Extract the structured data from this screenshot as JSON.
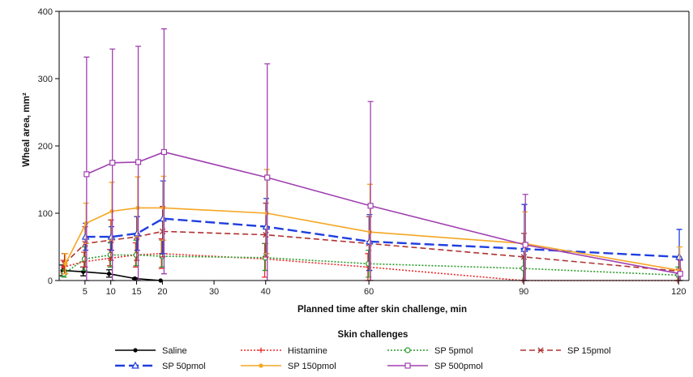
{
  "chart_data": {
    "type": "line",
    "title": "",
    "xlabel": "Planned time after skin challenge, min",
    "ylabel": "Wheal area, mm²",
    "xlim": [
      0,
      122
    ],
    "ylim": [
      0,
      400
    ],
    "x_ticks": [
      5,
      10,
      15,
      20,
      30,
      40,
      60,
      90,
      120
    ],
    "x_tick_labels": [
      "5",
      "10",
      "15",
      "20",
      "30",
      "40",
      "60",
      "90",
      "120"
    ],
    "y_ticks": [
      0,
      100,
      200,
      300,
      400
    ],
    "y_tick_labels": [
      "0",
      "100",
      "200",
      "300",
      "400"
    ],
    "grid": false,
    "legend": {
      "title": "Skin challenges",
      "placement": "bottom"
    },
    "series": [
      {
        "name": "Saline",
        "color": "#000000",
        "dash": "solid",
        "marker": "dot",
        "x": [
          1,
          5,
          10,
          15,
          20
        ],
        "y": [
          15,
          13,
          10,
          3,
          0
        ],
        "err_low": [
          7,
          7,
          5,
          2,
          0
        ],
        "err_high": [
          23,
          20,
          16,
          4,
          0
        ]
      },
      {
        "name": "Histamine",
        "color": "#ee2a2a",
        "dash": "dot",
        "marker": "plus",
        "x": [
          1,
          5,
          10,
          15,
          20,
          40,
          60,
          90,
          120
        ],
        "y": [
          20,
          28,
          33,
          38,
          40,
          32,
          20,
          0,
          0
        ],
        "err_low": [
          12,
          20,
          22,
          20,
          18,
          5,
          0,
          0,
          0
        ],
        "err_high": [
          30,
          42,
          46,
          56,
          62,
          55,
          40,
          0,
          0
        ]
      },
      {
        "name": "SP 5pmol",
        "color": "#2a9a2a",
        "dash": "dot",
        "marker": "circle",
        "x": [
          1,
          5,
          10,
          15,
          20,
          40,
          60,
          90,
          120
        ],
        "y": [
          10,
          32,
          38,
          38,
          36,
          34,
          25,
          18,
          8
        ],
        "err_low": [
          5,
          15,
          20,
          22,
          20,
          15,
          5,
          0,
          0
        ],
        "err_high": [
          16,
          50,
          56,
          60,
          60,
          55,
          45,
          35,
          20
        ]
      },
      {
        "name": "SP 15pmol",
        "color": "#b03030",
        "dash": "dash",
        "marker": "x",
        "x": [
          1,
          5,
          10,
          15,
          20,
          40,
          60,
          90,
          120
        ],
        "y": [
          25,
          55,
          60,
          65,
          73,
          68,
          55,
          35,
          14
        ],
        "err_low": [
          10,
          20,
          30,
          30,
          35,
          35,
          15,
          0,
          0
        ],
        "err_high": [
          40,
          80,
          90,
          95,
          110,
          115,
          95,
          70,
          35
        ]
      },
      {
        "name": "SP 50pmol",
        "color": "#1f3fe0",
        "dash": "longdash",
        "marker": "triangle",
        "x": [
          5,
          10,
          15,
          20,
          40,
          60,
          90,
          120
        ],
        "y": [
          65,
          65,
          70,
          92,
          80,
          58,
          47,
          35
        ],
        "err_low": [
          45,
          45,
          45,
          40,
          40,
          15,
          0,
          0
        ],
        "err_high": [
          85,
          80,
          95,
          148,
          122,
          98,
          113,
          76
        ]
      },
      {
        "name": "SP 150pmol",
        "color": "#f5a623",
        "dash": "solid",
        "marker": "dot",
        "x": [
          1,
          5,
          10,
          15,
          20,
          40,
          60,
          90,
          120
        ],
        "y": [
          25,
          85,
          103,
          108,
          108,
          100,
          72,
          55,
          15
        ],
        "err_low": [
          10,
          55,
          60,
          65,
          60,
          40,
          0,
          0,
          0
        ],
        "err_high": [
          40,
          115,
          146,
          154,
          155,
          165,
          143,
          102,
          50
        ]
      },
      {
        "name": "SP 500pmol",
        "color": "#a040b0",
        "dash": "solid",
        "marker": "square",
        "x": [
          5,
          10,
          15,
          20,
          40,
          60,
          90,
          120
        ],
        "y": [
          158,
          175,
          176,
          191,
          153,
          111,
          53,
          10
        ],
        "err_low": [
          0,
          0,
          0,
          10,
          0,
          0,
          0,
          0
        ],
        "err_high": [
          332,
          344,
          348,
          374,
          322,
          266,
          128,
          30
        ]
      }
    ]
  }
}
